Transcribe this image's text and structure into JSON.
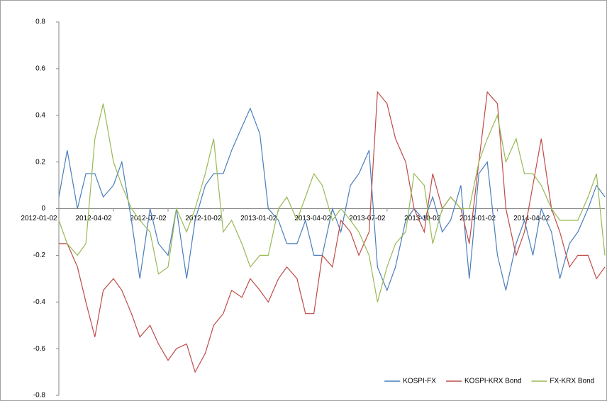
{
  "chart_data": {
    "type": "line",
    "x": [
      "2012-01-02",
      "2012-01-16",
      "2012-02-02",
      "2012-02-16",
      "2012-03-02",
      "2012-03-16",
      "2012-04-02",
      "2012-04-16",
      "2012-05-02",
      "2012-05-16",
      "2012-06-02",
      "2012-06-16",
      "2012-07-02",
      "2012-07-16",
      "2012-08-02",
      "2012-08-16",
      "2012-09-02",
      "2012-09-16",
      "2012-10-02",
      "2012-10-16",
      "2012-11-02",
      "2012-11-16",
      "2012-12-02",
      "2012-12-16",
      "2013-01-02",
      "2013-01-16",
      "2013-02-02",
      "2013-02-16",
      "2013-03-02",
      "2013-03-16",
      "2013-04-02",
      "2013-04-16",
      "2013-05-02",
      "2013-05-16",
      "2013-06-02",
      "2013-06-16",
      "2013-07-02",
      "2013-07-16",
      "2013-08-02",
      "2013-08-16",
      "2013-09-02",
      "2013-09-16",
      "2013-10-02",
      "2013-10-16",
      "2013-11-02",
      "2013-11-16",
      "2013-12-02",
      "2013-12-16",
      "2014-01-02",
      "2014-01-16",
      "2014-02-02",
      "2014-02-16",
      "2014-03-02",
      "2014-03-16",
      "2014-04-02",
      "2014-04-16",
      "2014-05-02",
      "2014-05-16",
      "2014-06-02",
      "2014-06-16",
      "2014-06-30"
    ],
    "series": [
      {
        "name": "KOSPI-FX",
        "color": "#4a7ebb",
        "values": [
          0.05,
          0.25,
          0.0,
          0.15,
          0.15,
          0.05,
          0.1,
          0.2,
          -0.05,
          -0.3,
          0.0,
          -0.15,
          -0.2,
          0.0,
          -0.3,
          -0.05,
          0.1,
          0.15,
          0.15,
          0.25,
          0.35,
          0.43,
          0.32,
          0.0,
          -0.05,
          -0.15,
          -0.15,
          -0.05,
          -0.2,
          -0.2,
          0.0,
          -0.1,
          0.1,
          0.15,
          0.25,
          -0.25,
          -0.35,
          -0.25,
          -0.05,
          0.0,
          -0.05,
          0.05,
          -0.1,
          -0.05,
          0.1,
          -0.3,
          0.15,
          0.2,
          -0.2,
          -0.35,
          -0.15,
          -0.05,
          -0.2,
          0.0,
          -0.1,
          -0.3,
          -0.15,
          -0.1,
          0.0,
          0.1,
          0.05
        ]
      },
      {
        "name": "KOSPI-KRX Bond",
        "color": "#be4b48",
        "values": [
          -0.15,
          -0.15,
          -0.25,
          -0.4,
          -0.55,
          -0.35,
          -0.3,
          -0.35,
          -0.45,
          -0.55,
          -0.5,
          -0.58,
          -0.65,
          -0.6,
          -0.58,
          -0.7,
          -0.62,
          -0.5,
          -0.45,
          -0.35,
          -0.38,
          -0.3,
          -0.35,
          -0.4,
          -0.3,
          -0.25,
          -0.3,
          -0.45,
          -0.45,
          -0.2,
          -0.25,
          -0.05,
          -0.1,
          -0.2,
          -0.1,
          0.5,
          0.45,
          0.3,
          0.2,
          0.0,
          -0.1,
          0.15,
          0.0,
          0.05,
          0.0,
          -0.15,
          0.2,
          0.5,
          0.45,
          0.0,
          -0.2,
          -0.1,
          0.1,
          0.3,
          0.0,
          -0.1,
          -0.25,
          -0.2,
          -0.2,
          -0.3,
          -0.25
        ]
      },
      {
        "name": "FX-KRX Bond",
        "color": "#98b954",
        "values": [
          -0.05,
          -0.15,
          -0.2,
          -0.15,
          0.3,
          0.45,
          0.2,
          0.1,
          0.0,
          -0.05,
          -0.1,
          -0.28,
          -0.25,
          0.0,
          -0.1,
          0.0,
          0.15,
          0.3,
          -0.1,
          -0.05,
          -0.15,
          -0.25,
          -0.2,
          -0.2,
          0.0,
          0.05,
          -0.05,
          0.05,
          0.15,
          0.1,
          -0.05,
          0.0,
          -0.05,
          -0.1,
          -0.2,
          -0.4,
          -0.25,
          -0.15,
          -0.1,
          0.15,
          0.1,
          -0.15,
          0.0,
          0.05,
          0.0,
          0.0,
          0.2,
          0.3,
          0.4,
          0.2,
          0.3,
          0.15,
          0.15,
          0.1,
          0.0,
          -0.05,
          -0.05,
          -0.05,
          0.05,
          0.15,
          -0.2
        ]
      }
    ],
    "xlim": [
      "2012-01-02",
      "2014-06-30"
    ],
    "xticks": [
      "2012-01-02",
      "2012-04-02",
      "2012-07-02",
      "2012-10-02",
      "2013-01-02",
      "2013-04-02",
      "2013-07-02",
      "2013-10-02",
      "2014-01-02",
      "2014-04-02"
    ],
    "ylim": [
      -0.8,
      0.8
    ],
    "yticks": [
      {
        "value": 0.8,
        "label": "0.8"
      },
      {
        "value": 0.6,
        "label": "0.6"
      },
      {
        "value": 0.4,
        "label": "0.4"
      },
      {
        "value": 0.2,
        "label": "0.2"
      },
      0,
      {
        "value": -0.2,
        "label": "-0.2"
      },
      {
        "value": -0.4,
        "label": "-0.4"
      },
      {
        "value": -0.6,
        "label": "-0.6"
      },
      {
        "value": -0.8,
        "label": "-0.8"
      }
    ],
    "legend": "lower right"
  }
}
